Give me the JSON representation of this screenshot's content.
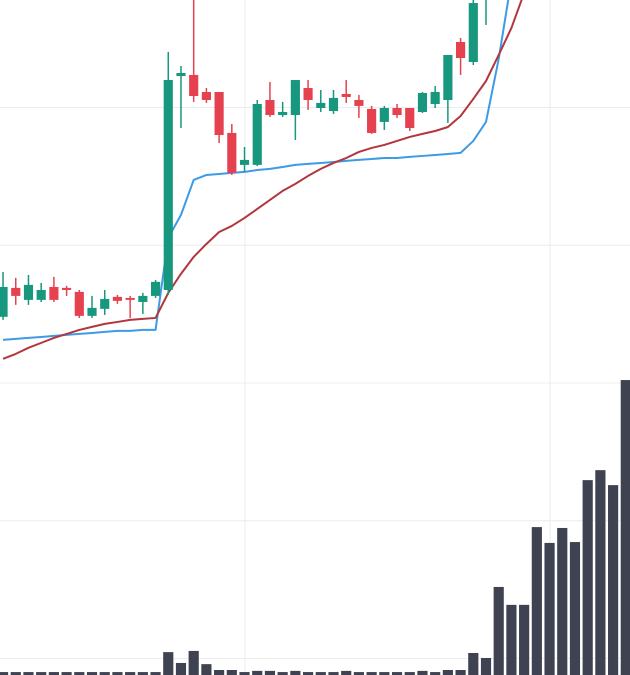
{
  "chart_data": {
    "type": "candlestick",
    "x": [
      0,
      1,
      2,
      3,
      4,
      5,
      6,
      7,
      8,
      9,
      10,
      11,
      12,
      13,
      14,
      15,
      16,
      17,
      18,
      19,
      20,
      21,
      22,
      23,
      24,
      25,
      26,
      27,
      28,
      29,
      30,
      31,
      32,
      33,
      34,
      35,
      36,
      37,
      38,
      39,
      40,
      41,
      42,
      43,
      44,
      45,
      46,
      47,
      48,
      49
    ],
    "xlim": [
      -0.24,
      49.33
    ],
    "xticks": [
      19.04,
      43.04
    ],
    "ylim": [
      -11.2,
      37.8
    ],
    "yticks": [
      -10,
      0,
      10,
      20,
      30
    ],
    "y2lim": [
      0,
      230
    ],
    "grid": true,
    "up_color": "#17977d",
    "down_color": "#e5414f",
    "open": [
      14.8,
      16.9,
      16.03,
      16.03,
      16.97,
      16.9,
      16.61,
      14.87,
      15.38,
      16.25,
      16.17,
      15.88,
      16.32,
      16.75,
      32.28,
      32.36,
      31.12,
      31.12,
      28.15,
      25.83,
      25.83,
      30.54,
      29.45,
      29.45,
      31.41,
      29.96,
      29.74,
      30.98,
      30.54,
      29.89,
      28.95,
      29.96,
      29.96,
      29.67,
      30.25,
      30.54,
      34.75,
      33.3,
      38.5,
      null,
      null,
      null,
      null,
      null,
      null,
      null,
      null,
      null,
      null,
      null
    ],
    "high": [
      18.06,
      17.63,
      17.84,
      17.26,
      17.7,
      17.05,
      16.75,
      16.32,
      16.75,
      16.39,
      16.32,
      16.54,
      17.48,
      34.03,
      33.01,
      38.5,
      31.41,
      31.12,
      28.8,
      27.13,
      30.54,
      31.85,
      30.4,
      31.99,
      31.99,
      31.27,
      31.27,
      31.99,
      30.91,
      30.11,
      30.11,
      30.25,
      29.96,
      31.12,
      31.56,
      33.81,
      35.04,
      38.0,
      40.5,
      null,
      null,
      null,
      null,
      null,
      null,
      null,
      null,
      null,
      null,
      null
    ],
    "low": [
      14.58,
      15.67,
      15.67,
      15.88,
      15.88,
      16.32,
      14.72,
      14.72,
      14.94,
      15.74,
      14.72,
      15.01,
      16.17,
      16.39,
      28.51,
      30.4,
      30.33,
      27.42,
      25.1,
      25.32,
      25.75,
      29.31,
      29.31,
      27.64,
      29.82,
      29.67,
      29.53,
      30.33,
      29.24,
      28.08,
      28.37,
      29.24,
      28.29,
      29.6,
      29.96,
      28.87,
      32.36,
      33.08,
      35.99,
      null,
      null,
      null,
      null,
      null,
      null,
      null,
      null,
      null,
      null,
      null
    ],
    "close": [
      16.97,
      16.32,
      17.12,
      16.75,
      16.03,
      16.75,
      14.87,
      15.45,
      16.1,
      15.96,
      16.03,
      16.32,
      17.34,
      31.99,
      32.5,
      30.83,
      30.54,
      28.0,
      25.25,
      26.19,
      30.25,
      29.45,
      29.67,
      31.99,
      30.54,
      30.33,
      30.69,
      30.76,
      30.11,
      28.15,
      29.96,
      29.45,
      28.51,
      31.05,
      31.12,
      33.81,
      33.59,
      37.58,
      40,
      null,
      null,
      null,
      null,
      null,
      null,
      null,
      null,
      null,
      null,
      null
    ],
    "series": [
      {
        "color": "#3d9be6",
        "values": [
          13.13,
          13.2,
          13.27,
          13.34,
          13.42,
          13.49,
          13.56,
          13.63,
          13.71,
          13.78,
          13.78,
          13.85,
          13.85,
          20.53,
          22.2,
          24.74,
          25.1,
          25.17,
          25.25,
          25.32,
          25.46,
          25.54,
          25.68,
          25.83,
          25.9,
          25.97,
          26.04,
          26.12,
          26.19,
          26.26,
          26.33,
          26.33,
          26.41,
          26.48,
          26.55,
          26.62,
          26.7,
          27.57,
          28.95,
          33.52,
          39.25,
          null,
          null,
          null,
          null,
          null,
          null,
          null,
          null,
          null
        ]
      },
      {
        "color": "#b2373d",
        "values": [
          11.75,
          12.11,
          12.55,
          12.91,
          13.27,
          13.56,
          13.85,
          14.07,
          14.29,
          14.43,
          14.58,
          14.65,
          14.72,
          16.54,
          17.92,
          19.15,
          20.09,
          20.96,
          21.4,
          21.98,
          22.63,
          23.29,
          23.94,
          24.45,
          25.03,
          25.54,
          25.97,
          26.33,
          26.77,
          27.06,
          27.28,
          27.57,
          27.86,
          28.08,
          28.29,
          28.58,
          29.38,
          30.62,
          31.92,
          33.81,
          35.77,
          38.31,
          null,
          null,
          null,
          null,
          null,
          null,
          null,
          null
        ]
      },
      {
        "type": "bar",
        "axis": "y2",
        "color": "#3f4250",
        "values": [
          1.0,
          1.0,
          1.0,
          1.0,
          1.0,
          1.0,
          1.0,
          1.0,
          1.0,
          1.0,
          1.0,
          1.0,
          1.0,
          7.8,
          4.1,
          8.2,
          3.7,
          1.7,
          1.7,
          1.0,
          1.4,
          1.4,
          1.0,
          1.4,
          1.0,
          1.0,
          1.0,
          1.4,
          1.0,
          1.0,
          1.0,
          1.0,
          1.0,
          1.4,
          1.0,
          1.7,
          1.7,
          7.5,
          5.8,
          30.0,
          23.9,
          23.9,
          50.4,
          45.0,
          50.1,
          45.3,
          66.4,
          69.8,
          64.7,
          100.5
        ]
      }
    ]
  }
}
